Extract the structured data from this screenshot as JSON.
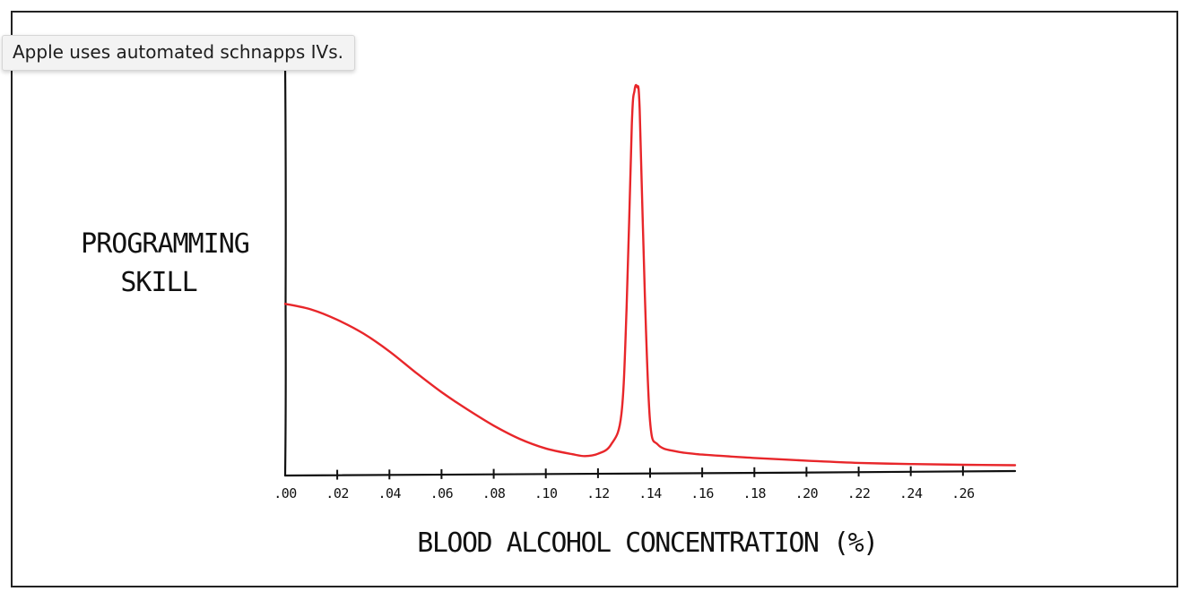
{
  "tooltip": {
    "text": "Apple uses automated schnapps IVs."
  },
  "chart_data": {
    "type": "line",
    "title": "",
    "ylabel_lines": [
      "PROGRAMMING",
      "SKILL"
    ],
    "xlabel": "BLOOD ALCOHOL CONCENTRATION (%)",
    "xlim": [
      0.0,
      0.28
    ],
    "ylim": [
      0,
      1
    ],
    "y_ticks_shown": false,
    "grid": false,
    "x_tick_values": [
      0.0,
      0.02,
      0.04,
      0.06,
      0.08,
      0.1,
      0.12,
      0.14,
      0.16,
      0.18,
      0.2,
      0.22,
      0.24,
      0.26
    ],
    "x_tick_labels": [
      ".00",
      ".02",
      ".04",
      ".06",
      ".08",
      ".10",
      ".12",
      ".14",
      ".16",
      ".18",
      ".20",
      ".22",
      ".24",
      ".26"
    ],
    "series": [
      {
        "color": "#e8262a",
        "points": [
          [
            0.0,
            0.43
          ],
          [
            0.01,
            0.415
          ],
          [
            0.02,
            0.388
          ],
          [
            0.03,
            0.352
          ],
          [
            0.04,
            0.305
          ],
          [
            0.05,
            0.25
          ],
          [
            0.06,
            0.198
          ],
          [
            0.07,
            0.152
          ],
          [
            0.08,
            0.11
          ],
          [
            0.09,
            0.075
          ],
          [
            0.1,
            0.05
          ],
          [
            0.11,
            0.035
          ],
          [
            0.115,
            0.03
          ],
          [
            0.12,
            0.036
          ],
          [
            0.125,
            0.06
          ],
          [
            0.129,
            0.14
          ],
          [
            0.131,
            0.42
          ],
          [
            0.133,
            0.9
          ],
          [
            0.134,
            0.99
          ],
          [
            0.135,
            1.0
          ],
          [
            0.136,
            0.94
          ],
          [
            0.138,
            0.45
          ],
          [
            0.14,
            0.12
          ],
          [
            0.143,
            0.06
          ],
          [
            0.15,
            0.042
          ],
          [
            0.16,
            0.034
          ],
          [
            0.18,
            0.025
          ],
          [
            0.2,
            0.018
          ],
          [
            0.22,
            0.012
          ],
          [
            0.24,
            0.009
          ],
          [
            0.26,
            0.007
          ],
          [
            0.28,
            0.006
          ]
        ]
      }
    ]
  }
}
